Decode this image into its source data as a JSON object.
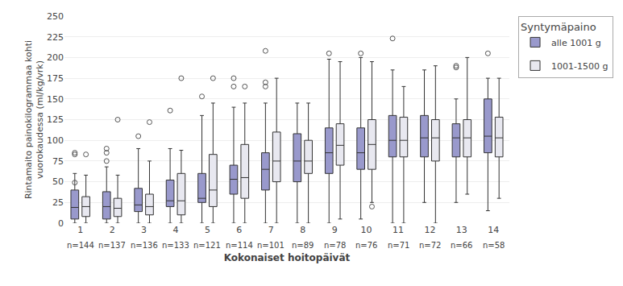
{
  "chart_data": {
    "type": "box",
    "xlabel": "Kokonaiset hoitopäivät",
    "ylabel": "Rintamaito painokilogrammaa kohti\nvuorokaudessa (ml/kg/vrk)",
    "legend_title": "Syntymäpaino",
    "legend": "upper right",
    "grid": true,
    "ylim": [
      0,
      250
    ],
    "yticks": [
      0,
      25,
      50,
      75,
      100,
      125,
      150,
      175,
      200,
      225,
      250
    ],
    "categories": [
      "1",
      "2",
      "3",
      "4",
      "5",
      "6",
      "7",
      "8",
      "9",
      "10",
      "11",
      "12",
      "13",
      "14"
    ],
    "annotations": [
      {
        "category": "1",
        "text": "n=144"
      },
      {
        "category": "2",
        "text": "n=137"
      },
      {
        "category": "3",
        "text": "n=136"
      },
      {
        "category": "4",
        "text": "n=133"
      },
      {
        "category": "5",
        "text": "n=121"
      },
      {
        "category": "6",
        "text": "n=114"
      },
      {
        "category": "7",
        "text": "n=101"
      },
      {
        "category": "8",
        "text": "n=89"
      },
      {
        "category": "9",
        "text": "n=78"
      },
      {
        "category": "10",
        "text": "n=76"
      },
      {
        "category": "11",
        "text": "n=71"
      },
      {
        "category": "12",
        "text": "n=72"
      },
      {
        "category": "13",
        "text": "n=66"
      },
      {
        "category": "14",
        "text": "n=58"
      }
    ],
    "series": [
      {
        "name": "alle 1001 g",
        "color": "#9999cc",
        "values": [
          {
            "q1": 5,
            "med": 19,
            "q3": 40,
            "whislo": 0,
            "whishi": 60,
            "fliers": [
              49,
              85,
              83
            ]
          },
          {
            "q1": 5,
            "med": 20,
            "q3": 38,
            "whislo": 0,
            "whishi": 68,
            "fliers": [
              90,
              85,
              75
            ]
          },
          {
            "q1": 14,
            "med": 22,
            "q3": 42,
            "whislo": 0,
            "whishi": 90,
            "fliers": [
              105
            ]
          },
          {
            "q1": 20,
            "med": 27,
            "q3": 52,
            "whislo": 0,
            "whishi": 90,
            "fliers": [
              136
            ]
          },
          {
            "q1": 25,
            "med": 30,
            "q3": 60,
            "whislo": 0,
            "whishi": 130,
            "fliers": [
              153
            ]
          },
          {
            "q1": 35,
            "med": 53,
            "q3": 70,
            "whislo": 0,
            "whishi": 140,
            "fliers": [
              175,
              165
            ]
          },
          {
            "q1": 40,
            "med": 65,
            "q3": 85,
            "whislo": 0,
            "whishi": 145,
            "fliers": [
              170,
              165,
              208
            ]
          },
          {
            "q1": 50,
            "med": 75,
            "q3": 108,
            "whislo": 0,
            "whishi": 145,
            "fliers": []
          },
          {
            "q1": 60,
            "med": 85,
            "q3": 115,
            "whislo": 0,
            "whishi": 198,
            "fliers": [
              205
            ]
          },
          {
            "q1": 65,
            "med": 85,
            "q3": 115,
            "whislo": 5,
            "whishi": 200,
            "fliers": [
              205
            ]
          },
          {
            "q1": 80,
            "med": 100,
            "q3": 130,
            "whislo": 0,
            "whishi": 185,
            "fliers": [
              223
            ]
          },
          {
            "q1": 80,
            "med": 103,
            "q3": 130,
            "whislo": 25,
            "whishi": 185,
            "fliers": []
          },
          {
            "q1": 80,
            "med": 103,
            "q3": 120,
            "whislo": 25,
            "whishi": 150,
            "fliers": [
              188,
              190
            ]
          },
          {
            "q1": 85,
            "med": 105,
            "q3": 150,
            "whislo": 15,
            "whishi": 175,
            "fliers": [
              205
            ]
          }
        ]
      },
      {
        "name": "1001-1500 g",
        "color": "#e8e8f0",
        "values": [
          {
            "q1": 8,
            "med": 20,
            "q3": 32,
            "whislo": 0,
            "whishi": 58,
            "fliers": [
              83
            ]
          },
          {
            "q1": 8,
            "med": 18,
            "q3": 30,
            "whislo": 0,
            "whishi": 58,
            "fliers": [
              125
            ]
          },
          {
            "q1": 10,
            "med": 20,
            "q3": 35,
            "whislo": 0,
            "whishi": 75,
            "fliers": [
              122
            ]
          },
          {
            "q1": 10,
            "med": 27,
            "q3": 60,
            "whislo": 0,
            "whishi": 88,
            "fliers": [
              175
            ]
          },
          {
            "q1": 20,
            "med": 40,
            "q3": 83,
            "whislo": 0,
            "whishi": 145,
            "fliers": [
              175
            ]
          },
          {
            "q1": 30,
            "med": 55,
            "q3": 95,
            "whislo": 0,
            "whishi": 145,
            "fliers": [
              165
            ]
          },
          {
            "q1": 50,
            "med": 75,
            "q3": 110,
            "whislo": 0,
            "whishi": 175,
            "fliers": []
          },
          {
            "q1": 60,
            "med": 75,
            "q3": 100,
            "whislo": 0,
            "whishi": 145,
            "fliers": []
          },
          {
            "q1": 70,
            "med": 94,
            "q3": 120,
            "whislo": 5,
            "whishi": 195,
            "fliers": []
          },
          {
            "q1": 65,
            "med": 95,
            "q3": 125,
            "whislo": 25,
            "whishi": 195,
            "fliers": [
              20
            ]
          },
          {
            "q1": 80,
            "med": 100,
            "q3": 128,
            "whislo": 0,
            "whishi": 165,
            "fliers": []
          },
          {
            "q1": 75,
            "med": 103,
            "q3": 125,
            "whislo": 0,
            "whishi": 190,
            "fliers": []
          },
          {
            "q1": 80,
            "med": 103,
            "q3": 125,
            "whislo": 35,
            "whishi": 200,
            "fliers": []
          },
          {
            "q1": 80,
            "med": 103,
            "q3": 128,
            "whislo": 30,
            "whishi": 175,
            "fliers": []
          }
        ]
      }
    ]
  }
}
